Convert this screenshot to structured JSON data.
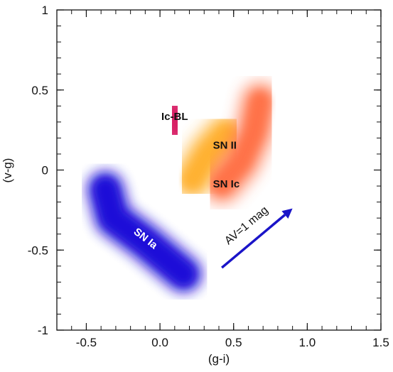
{
  "chart_data": {
    "type": "scatter",
    "xlabel": "(g-i)",
    "ylabel": "(v-g)",
    "xlim": [
      -0.7,
      1.5
    ],
    "ylim": [
      -1,
      1
    ],
    "x_ticks": [
      "-0.5",
      "0.0",
      "0.5",
      "1.0",
      "1.5"
    ],
    "x_tick_values": [
      -0.5,
      0.0,
      0.5,
      1.0,
      1.5
    ],
    "y_ticks": [
      "-1",
      "-0.5",
      "0",
      "0.5",
      "1"
    ],
    "y_tick_values": [
      -1,
      -0.5,
      0,
      0.5,
      1
    ],
    "grid": false,
    "regions": [
      {
        "name": "SN Ia",
        "color": "#1a10d8",
        "label_color": "#ffffff",
        "path": [
          [
            -0.37,
            -0.12
          ],
          [
            -0.32,
            -0.3
          ],
          [
            -0.1,
            -0.45
          ],
          [
            0.16,
            -0.65
          ]
        ],
        "label_at": [
          -0.1,
          -0.43
        ],
        "label_rotation": 38
      },
      {
        "name": "Ic-BL",
        "color": "#d81f63",
        "label_color": "#111111",
        "path": [
          [
            0.09,
            0.36
          ],
          [
            0.11,
            0.26
          ]
        ],
        "label_at": [
          0.1,
          0.33
        ],
        "label_rotation": 0
      },
      {
        "name": "SN II",
        "color": "#ffb02e",
        "label_color": "#111111",
        "path": [
          [
            0.22,
            -0.06
          ],
          [
            0.33,
            0.11
          ],
          [
            0.45,
            0.23
          ]
        ],
        "label_at": [
          0.44,
          0.15
        ],
        "label_rotation": 0
      },
      {
        "name": "SN Ic",
        "color": "#ff6f45",
        "label_color": "#111111",
        "path": [
          [
            0.42,
            -0.09
          ],
          [
            0.55,
            0.05
          ],
          [
            0.64,
            0.24
          ],
          [
            0.68,
            0.43
          ]
        ],
        "label_at": [
          0.45,
          -0.09
        ],
        "label_rotation": 0
      }
    ],
    "arrow": {
      "label": "AV=1 mag",
      "from": [
        0.42,
        -0.61
      ],
      "to": [
        0.9,
        -0.24
      ],
      "color": "#1a14c8"
    }
  }
}
